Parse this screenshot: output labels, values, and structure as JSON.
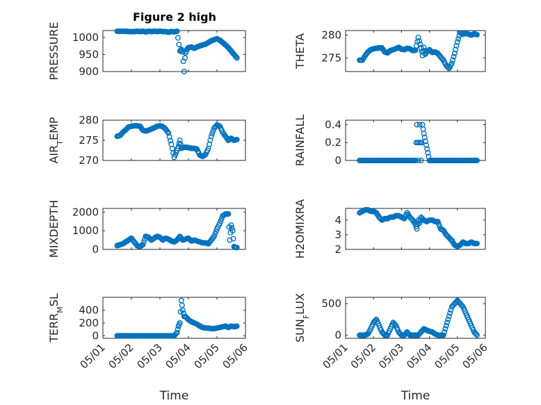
{
  "figure_title": "Figure 2 high",
  "marker_color": "#0072BD",
  "x_tick_labels": [
    "05/01",
    "05/02",
    "05/03",
    "05/04",
    "05/05",
    "05/06"
  ],
  "x_label": "Time",
  "chart_data": [
    {
      "id": "pressure",
      "type": "scatter",
      "ylabel": "PRESSURE",
      "ylim": [
        900,
        1020
      ],
      "yticks": [
        900,
        950,
        1000
      ],
      "xlim": [
        0,
        5
      ],
      "grid": true,
      "x": [
        0.5,
        0.6,
        0.7,
        0.8,
        0.9,
        1.0,
        1.1,
        1.2,
        1.3,
        1.4,
        1.5,
        1.6,
        1.7,
        1.8,
        1.9,
        2.0,
        2.1,
        2.2,
        2.3,
        2.4,
        2.5,
        2.6,
        2.7,
        2.75,
        2.8,
        2.82,
        2.85,
        2.88,
        2.9,
        2.95,
        3.0,
        3.1,
        3.2,
        3.3,
        3.4,
        3.5,
        3.6,
        3.7,
        3.8,
        3.9,
        4.0,
        4.1,
        4.2,
        4.3,
        4.4,
        4.45,
        4.5,
        4.55,
        4.6,
        4.65,
        4.7
      ],
      "y": [
        1018,
        1018,
        1018,
        1018,
        1017,
        1017,
        1017,
        1018,
        1017,
        1018,
        1016,
        1018,
        1017,
        1018,
        1017,
        1018,
        1017,
        1017,
        1015,
        1017,
        1016,
        1018,
        960,
        965,
        957,
        930,
        900,
        940,
        955,
        965,
        970,
        972,
        968,
        972,
        975,
        978,
        980,
        985,
        990,
        993,
        996,
        992,
        985,
        978,
        970,
        965,
        960,
        955,
        950,
        945,
        940
      ]
    },
    {
      "id": "theta",
      "type": "scatter",
      "ylabel": "THETA",
      "ylim": [
        272,
        281
      ],
      "yticks": [
        275,
        280
      ],
      "xlim": [
        0,
        5
      ],
      "grid": true,
      "x": [
        0.5,
        0.6,
        0.7,
        0.8,
        0.9,
        1.0,
        1.1,
        1.2,
        1.3,
        1.4,
        1.5,
        1.6,
        1.7,
        1.8,
        1.9,
        2.0,
        2.1,
        2.2,
        2.3,
        2.4,
        2.5,
        2.6,
        2.7,
        2.75,
        2.8,
        2.85,
        2.9,
        3.0,
        3.1,
        3.2,
        3.3,
        3.4,
        3.5,
        3.6,
        3.7,
        3.8,
        3.9,
        4.0,
        4.1,
        4.2,
        4.3,
        4.4,
        4.5,
        4.6,
        4.7
      ],
      "y": [
        274.5,
        274.5,
        275.5,
        276.3,
        276.8,
        277.0,
        277.1,
        277.2,
        277.2,
        276.3,
        276.1,
        276.6,
        276.8,
        277.0,
        277.3,
        276.9,
        276.8,
        277.1,
        277.0,
        276.6,
        276.7,
        279.5,
        277.2,
        275.5,
        277.3,
        275.8,
        276.3,
        276.8,
        276.2,
        276.3,
        276.0,
        275.2,
        274.5,
        273.3,
        272.7,
        273.8,
        276.0,
        278.5,
        280.5,
        280.2,
        280.4,
        280.2,
        280.0,
        280.3,
        280.1
      ]
    },
    {
      "id": "air_temp",
      "type": "scatter",
      "ylabel": "AIR_TEMP",
      "ylim": [
        270,
        280
      ],
      "yticks": [
        270,
        275,
        280
      ],
      "xlim": [
        0,
        5
      ],
      "grid": true,
      "x": [
        0.5,
        0.6,
        0.7,
        0.8,
        0.9,
        1.0,
        1.1,
        1.2,
        1.3,
        1.4,
        1.5,
        1.6,
        1.7,
        1.8,
        1.9,
        2.0,
        2.1,
        2.2,
        2.3,
        2.4,
        2.5,
        2.6,
        2.65,
        2.7,
        2.75,
        2.8,
        2.9,
        3.0,
        3.1,
        3.2,
        3.3,
        3.4,
        3.5,
        3.6,
        3.7,
        3.8,
        3.9,
        4.0,
        4.1,
        4.2,
        4.3,
        4.4,
        4.5,
        4.6,
        4.7
      ],
      "y": [
        276.0,
        276.2,
        277.0,
        277.6,
        278.3,
        278.5,
        278.6,
        278.6,
        278.5,
        277.5,
        277.3,
        277.5,
        277.8,
        278.1,
        278.5,
        278.6,
        278.4,
        277.8,
        276.8,
        274.0,
        270.8,
        272.5,
        273.5,
        275.0,
        273.0,
        273.2,
        273.3,
        273.2,
        273.0,
        273.0,
        272.8,
        271.3,
        271.0,
        271.5,
        273.0,
        276.0,
        278.0,
        278.8,
        278.5,
        277.0,
        276.0,
        275.0,
        275.5,
        275.0,
        275.2
      ]
    },
    {
      "id": "rainfall",
      "type": "scatter",
      "ylabel": "RAINFALL",
      "ylim": [
        0,
        0.45
      ],
      "yticks": [
        0,
        0.2,
        0.4
      ],
      "xlim": [
        0,
        5
      ],
      "grid": true,
      "x": [
        0.5,
        0.7,
        0.9,
        1.1,
        1.3,
        1.5,
        1.7,
        1.9,
        2.1,
        2.3,
        2.5,
        2.55,
        2.6,
        2.65,
        2.7,
        2.75,
        2.8,
        3.0,
        3.2,
        3.4,
        3.6,
        3.8,
        4.0,
        4.2,
        4.4,
        4.6,
        4.7
      ],
      "y": [
        0,
        0,
        0,
        0,
        0,
        0,
        0,
        0,
        0,
        0,
        0,
        0.4,
        0,
        0.4,
        0,
        0.4,
        0.3,
        0,
        0,
        0,
        0,
        0,
        0,
        0,
        0,
        0,
        0
      ]
    },
    {
      "id": "mixdepth",
      "type": "scatter",
      "ylabel": "MIXDEPTH",
      "ylim": [
        0,
        2200
      ],
      "yticks": [
        0,
        1000,
        2000
      ],
      "xlim": [
        0,
        5
      ],
      "grid": true,
      "x": [
        0.5,
        0.6,
        0.7,
        0.8,
        0.9,
        1.0,
        1.1,
        1.2,
        1.3,
        1.4,
        1.5,
        1.6,
        1.7,
        1.8,
        1.9,
        2.0,
        2.1,
        2.2,
        2.3,
        2.4,
        2.5,
        2.6,
        2.7,
        2.8,
        2.9,
        3.0,
        3.1,
        3.2,
        3.3,
        3.4,
        3.5,
        3.6,
        3.7,
        3.8,
        3.9,
        4.0,
        4.1,
        4.2,
        4.3,
        4.4,
        4.45,
        4.5,
        4.55,
        4.6,
        4.65,
        4.7
      ],
      "y": [
        200,
        250,
        300,
        400,
        500,
        600,
        400,
        200,
        150,
        250,
        700,
        650,
        500,
        600,
        700,
        650,
        500,
        600,
        550,
        450,
        400,
        500,
        700,
        500,
        550,
        600,
        450,
        500,
        450,
        400,
        350,
        350,
        300,
        500,
        700,
        1100,
        1400,
        1800,
        1900,
        1900,
        500,
        1300,
        1000,
        150,
        100,
        100
      ]
    },
    {
      "id": "h2omixra",
      "type": "scatter",
      "ylabel": "H2OMIXRA",
      "ylim": [
        2,
        4.8
      ],
      "yticks": [
        2,
        3,
        4
      ],
      "xlim": [
        0,
        5
      ],
      "grid": true,
      "x": [
        0.5,
        0.6,
        0.7,
        0.8,
        0.9,
        1.0,
        1.1,
        1.2,
        1.3,
        1.4,
        1.5,
        1.6,
        1.7,
        1.8,
        1.9,
        2.0,
        2.1,
        2.2,
        2.3,
        2.4,
        2.5,
        2.55,
        2.6,
        2.65,
        2.7,
        2.8,
        2.9,
        3.0,
        3.1,
        3.2,
        3.3,
        3.4,
        3.5,
        3.6,
        3.7,
        3.8,
        3.9,
        4.0,
        4.1,
        4.2,
        4.3,
        4.4,
        4.5,
        4.6,
        4.7
      ],
      "y": [
        4.5,
        4.6,
        4.7,
        4.7,
        4.6,
        4.6,
        4.5,
        4.2,
        4.0,
        4.1,
        4.1,
        4.2,
        4.2,
        4.3,
        4.3,
        4.2,
        4.1,
        4.5,
        4.2,
        4.0,
        3.7,
        3.4,
        4.0,
        3.8,
        4.2,
        4.0,
        3.9,
        4.0,
        4.0,
        3.9,
        3.9,
        3.4,
        3.3,
        3.0,
        2.8,
        2.6,
        2.3,
        2.2,
        2.3,
        2.5,
        2.4,
        2.4,
        2.5,
        2.4,
        2.4
      ]
    },
    {
      "id": "terr_msl",
      "type": "scatter",
      "ylabel": "TERR_MSL",
      "ylim": [
        -40,
        600
      ],
      "yticks": [
        0,
        200,
        400
      ],
      "xlim": [
        0,
        5
      ],
      "grid": true,
      "x": [
        0.5,
        0.7,
        0.9,
        1.1,
        1.3,
        1.5,
        1.7,
        1.9,
        2.1,
        2.3,
        2.5,
        2.6,
        2.65,
        2.7,
        2.75,
        2.8,
        2.85,
        2.9,
        3.0,
        3.1,
        3.2,
        3.3,
        3.4,
        3.5,
        3.6,
        3.7,
        3.8,
        3.9,
        4.0,
        4.1,
        4.2,
        4.3,
        4.4,
        4.5,
        4.6,
        4.7
      ],
      "y": [
        0,
        0,
        0,
        0,
        0,
        0,
        0,
        0,
        0,
        0,
        0,
        50,
        150,
        200,
        550,
        400,
        300,
        300,
        250,
        220,
        200,
        180,
        150,
        130,
        120,
        120,
        110,
        110,
        120,
        130,
        140,
        150,
        130,
        150,
        140,
        150
      ]
    },
    {
      "id": "sun_flux",
      "type": "scatter",
      "ylabel": "SUN_FLUX",
      "ylim": [
        -50,
        600
      ],
      "yticks": [
        0,
        500
      ],
      "xlim": [
        0,
        5
      ],
      "grid": true,
      "x": [
        0.5,
        0.6,
        0.7,
        0.8,
        0.9,
        1.0,
        1.1,
        1.2,
        1.3,
        1.4,
        1.5,
        1.6,
        1.7,
        1.8,
        1.9,
        2.0,
        2.1,
        2.2,
        2.3,
        2.4,
        2.5,
        2.6,
        2.7,
        2.8,
        2.9,
        3.0,
        3.1,
        3.2,
        3.3,
        3.4,
        3.5,
        3.6,
        3.7,
        3.8,
        3.9,
        4.0,
        4.1,
        4.2,
        4.3,
        4.4,
        4.5,
        4.6,
        4.7
      ],
      "y": [
        0,
        0,
        0,
        20,
        100,
        200,
        250,
        150,
        50,
        0,
        0,
        100,
        200,
        150,
        50,
        0,
        0,
        50,
        0,
        0,
        0,
        0,
        50,
        100,
        80,
        60,
        50,
        20,
        0,
        0,
        0,
        150,
        300,
        450,
        500,
        550,
        500,
        450,
        350,
        250,
        150,
        50,
        0
      ]
    }
  ]
}
